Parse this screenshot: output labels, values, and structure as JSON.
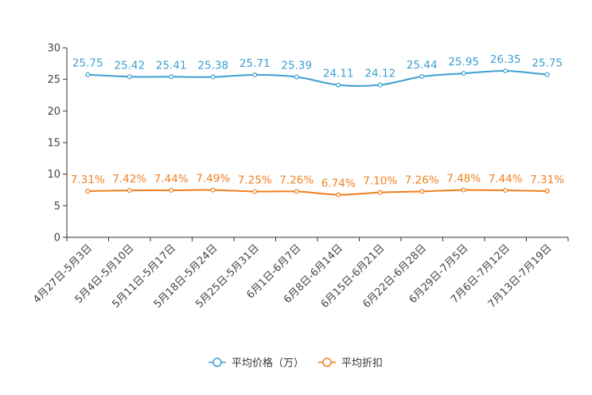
{
  "chart_data": {
    "type": "line",
    "title": "",
    "xlabel": "",
    "ylabel": "",
    "ylim": [
      0,
      30
    ],
    "yticks": [
      0,
      5,
      10,
      15,
      20,
      25,
      30
    ],
    "grid": false,
    "legend_position": "bottom-center",
    "categories": [
      "4月27日-5月3日",
      "5月4日-5月10日",
      "5月11日-5月17日",
      "5月18日-5月24日",
      "5月25日-5月31日",
      "6月1日-6月7日",
      "6月8日-6月14日",
      "6月15日-6月21日",
      "6月22日-6月28日",
      "6月29日-7月5日",
      "7月6日-7月12日",
      "7月13日-7月19日"
    ],
    "series": [
      {
        "name": "平均价格（万）",
        "color": "#3c9fd1",
        "values": [
          25.75,
          25.42,
          25.41,
          25.38,
          25.71,
          25.39,
          24.11,
          24.12,
          25.44,
          25.95,
          26.35,
          25.75
        ],
        "labels": [
          "25.75",
          "25.42",
          "25.41",
          "25.38",
          "25.71",
          "25.39",
          "24.11",
          "24.12",
          "25.44",
          "25.95",
          "26.35",
          "25.75"
        ]
      },
      {
        "name": "平均折扣",
        "color": "#f07f1e",
        "values": [
          7.31,
          7.42,
          7.44,
          7.49,
          7.25,
          7.26,
          6.74,
          7.1,
          7.26,
          7.48,
          7.44,
          7.31
        ],
        "labels": [
          "7.31%",
          "7.42%",
          "7.44%",
          "7.49%",
          "7.25%",
          "7.26%",
          "6.74%",
          "7.10%",
          "7.26%",
          "7.48%",
          "7.44%",
          "7.31%"
        ]
      }
    ]
  }
}
